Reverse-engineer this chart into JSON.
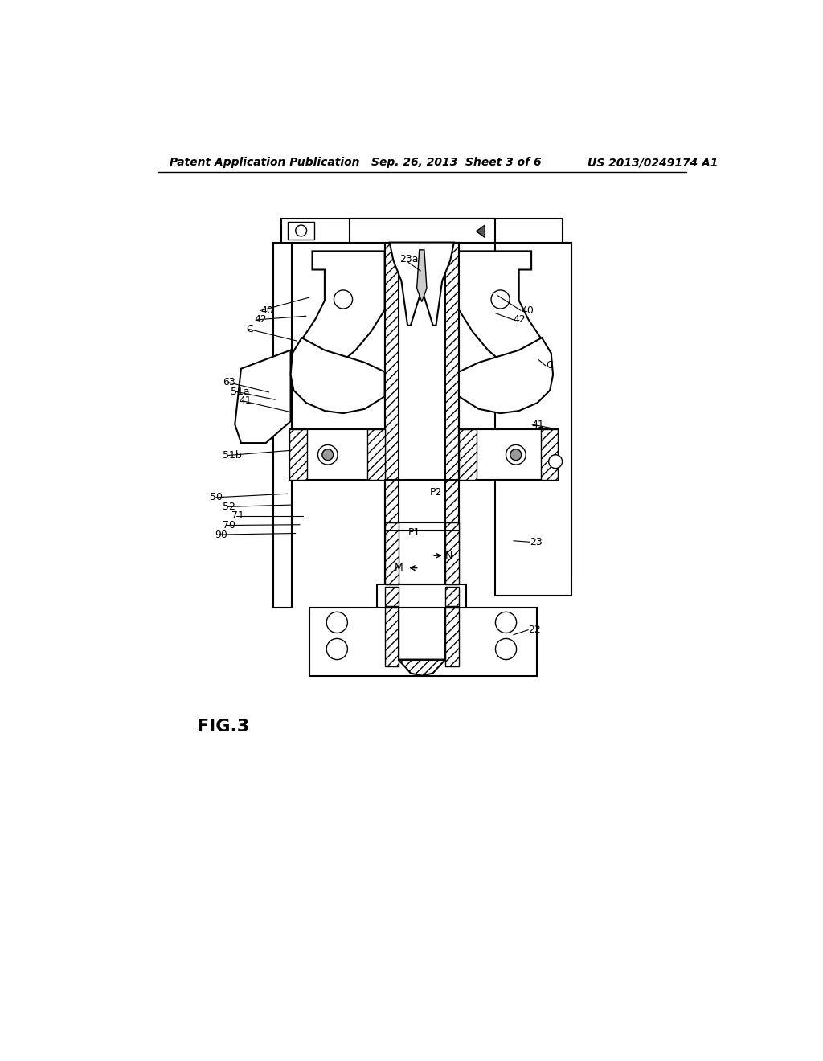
{
  "bg_color": "#ffffff",
  "line_color": "#000000",
  "header_left": "Patent Application Publication",
  "header_mid": "Sep. 26, 2013  Sheet 3 of 6",
  "header_right": "US 2013/0249174 A1",
  "fig_label": "FIG.3"
}
